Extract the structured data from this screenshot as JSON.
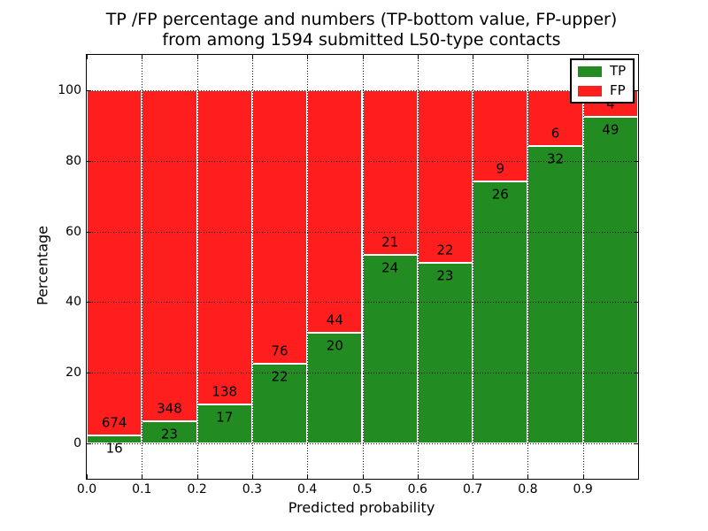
{
  "chart_data": {
    "type": "bar",
    "stacked": true,
    "percent_stacked": true,
    "title_line1": "TP /FP percentage and numbers (TP-bottom value, FP-upper)",
    "title_line2": "from among 1594 submitted L50-type contacts",
    "xlabel": "Predicted probability",
    "ylabel": "Percentage",
    "xlim": [
      0.0,
      1.0
    ],
    "ylim": [
      -10,
      110
    ],
    "bin_edges": [
      0.0,
      0.1,
      0.2,
      0.3,
      0.4,
      0.5,
      0.6,
      0.7,
      0.8,
      0.9,
      1.0
    ],
    "x_tick_values": [
      0.0,
      0.1,
      0.2,
      0.3,
      0.4,
      0.5,
      0.6,
      0.7,
      0.8,
      0.9
    ],
    "x_tick_labels": [
      "0.0",
      "0.1",
      "0.2",
      "0.3",
      "0.4",
      "0.5",
      "0.6",
      "0.7",
      "0.8",
      "0.9"
    ],
    "y_tick_values": [
      0,
      20,
      40,
      60,
      80,
      100
    ],
    "y_tick_labels": [
      "0",
      "20",
      "40",
      "60",
      "80",
      "100"
    ],
    "grid": true,
    "grid_style": "dotted-black-above-bars",
    "series": [
      {
        "name": "TP",
        "color": "#228b22",
        "values": [
          16,
          23,
          17,
          22,
          20,
          24,
          23,
          26,
          32,
          49
        ]
      },
      {
        "name": "FP",
        "color": "#ff1e1e",
        "values": [
          674,
          348,
          138,
          76,
          44,
          21,
          22,
          9,
          6,
          4
        ]
      }
    ],
    "legend": {
      "position": "upper right",
      "entries": [
        "TP",
        "FP"
      ]
    },
    "colors": {
      "bar_edge": "#ffffff",
      "grid": "#000000",
      "text": "#000000",
      "background": "#ffffff"
    }
  }
}
